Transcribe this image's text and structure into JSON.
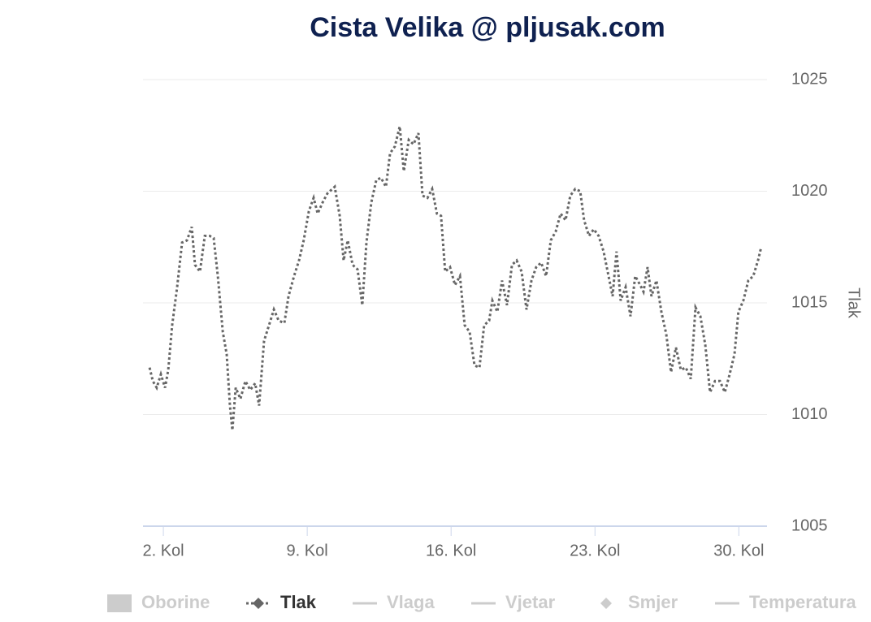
{
  "chart_data": {
    "type": "line",
    "title": "Cista Velika @ pljusak.com",
    "y_axis_label": "Tlak",
    "xlim": [
      1.01,
      31.37
    ],
    "xticks": [
      {
        "value": 2,
        "label": "2. Kol"
      },
      {
        "value": 9,
        "label": "9. Kol"
      },
      {
        "value": 16,
        "label": "16. Kol"
      },
      {
        "value": 23,
        "label": "23. Kol"
      },
      {
        "value": 30,
        "label": "30. Kol"
      }
    ],
    "ylim": [
      1005,
      1025
    ],
    "yticks": [
      1005,
      1010,
      1015,
      1020,
      1025
    ],
    "grid": true,
    "x": [
      1.33,
      1.49,
      1.68,
      1.88,
      2.08,
      2.24,
      2.43,
      2.67,
      2.91,
      3.15,
      3.38,
      3.54,
      3.78,
      4.02,
      4.25,
      4.45,
      4.65,
      4.89,
      5.08,
      5.24,
      5.36,
      5.52,
      5.75,
      5.99,
      6.23,
      6.47,
      6.66,
      6.9,
      7.14,
      7.38,
      7.61,
      7.89,
      8.09,
      8.36,
      8.6,
      8.83,
      9.08,
      9.31,
      9.51,
      9.75,
      9.98,
      10.34,
      10.58,
      10.77,
      10.97,
      11.21,
      11.45,
      11.68,
      11.88,
      12.12,
      12.36,
      12.59,
      12.83,
      13.03,
      13.26,
      13.5,
      13.7,
      13.94,
      14.17,
      14.41,
      14.61,
      14.85,
      15.08,
      15.31,
      15.51,
      15.71,
      15.95,
      16.19,
      16.43,
      16.66,
      16.9,
      17.14,
      17.38,
      17.61,
      17.85,
      18.01,
      18.25,
      18.48,
      18.72,
      18.96,
      19.19,
      19.43,
      19.67,
      19.91,
      20.14,
      20.38,
      20.62,
      20.85,
      21.09,
      21.33,
      21.57,
      21.8,
      22.04,
      22.28,
      22.47,
      22.71,
      22.94,
      23.18,
      23.42,
      23.66,
      23.86,
      24.05,
      24.25,
      24.49,
      24.73,
      24.96,
      25.2,
      25.36,
      25.56,
      25.75,
      25.99,
      26.23,
      26.47,
      26.7,
      26.94,
      27.18,
      27.42,
      27.66,
      27.89,
      28.13,
      28.37,
      28.6,
      28.84,
      29.08,
      29.32,
      29.55,
      29.79,
      29.98,
      30.22,
      30.46,
      30.7,
      30.93,
      31.09
    ],
    "series": [
      {
        "name": "Oborine",
        "symbol": "rect",
        "color": "#cccccc",
        "visible": false
      },
      {
        "name": "Tlak",
        "symbol": "diamond",
        "color": "#666666",
        "visible": true,
        "dash": "dot",
        "values": [
          1012.1,
          1011.5,
          1011.2,
          1011.8,
          1011.2,
          1012.0,
          1014.0,
          1015.7,
          1017.7,
          1017.8,
          1018.4,
          1016.7,
          1016.4,
          1018.0,
          1018.0,
          1017.9,
          1016.2,
          1013.7,
          1012.7,
          1010.4,
          1009.3,
          1011.2,
          1010.7,
          1011.5,
          1011.1,
          1011.4,
          1010.4,
          1013.3,
          1014.0,
          1014.7,
          1014.2,
          1014.1,
          1015.3,
          1016.2,
          1016.9,
          1017.8,
          1019.1,
          1019.7,
          1019.0,
          1019.5,
          1019.9,
          1020.2,
          1018.9,
          1016.9,
          1017.8,
          1016.7,
          1016.5,
          1014.9,
          1017.7,
          1019.5,
          1020.5,
          1020.6,
          1020.2,
          1021.7,
          1022.0,
          1022.9,
          1020.9,
          1022.3,
          1022.1,
          1022.6,
          1019.8,
          1019.7,
          1020.1,
          1019.0,
          1018.9,
          1016.4,
          1016.6,
          1015.8,
          1016.2,
          1014.0,
          1013.7,
          1012.2,
          1012.1,
          1014.0,
          1014.2,
          1015.1,
          1014.6,
          1016.0,
          1014.9,
          1016.7,
          1016.9,
          1016.4,
          1014.7,
          1016.0,
          1016.6,
          1016.8,
          1016.2,
          1017.8,
          1018.2,
          1019.0,
          1018.7,
          1019.8,
          1020.1,
          1020.0,
          1018.7,
          1018.0,
          1018.3,
          1018.0,
          1017.3,
          1016.2,
          1015.3,
          1017.3,
          1015.1,
          1015.7,
          1014.4,
          1016.2,
          1015.8,
          1015.5,
          1016.6,
          1015.3,
          1016.0,
          1014.6,
          1013.6,
          1011.9,
          1013.0,
          1012.0,
          1012.1,
          1011.6,
          1014.8,
          1014.4,
          1013.1,
          1011.0,
          1011.5,
          1011.5,
          1011.0,
          1011.8,
          1012.7,
          1014.6,
          1015.1,
          1016.0,
          1016.2,
          1016.9,
          1017.5
        ]
      },
      {
        "name": "Vlaga",
        "symbol": "line",
        "color": "#cccccc",
        "visible": false
      },
      {
        "name": "Vjetar",
        "symbol": "line",
        "color": "#cccccc",
        "visible": false
      },
      {
        "name": "Smjer",
        "symbol": "diamond",
        "color": "#cccccc",
        "visible": false
      },
      {
        "name": "Temperatura",
        "symbol": "line",
        "color": "#cccccc",
        "visible": false
      }
    ]
  }
}
